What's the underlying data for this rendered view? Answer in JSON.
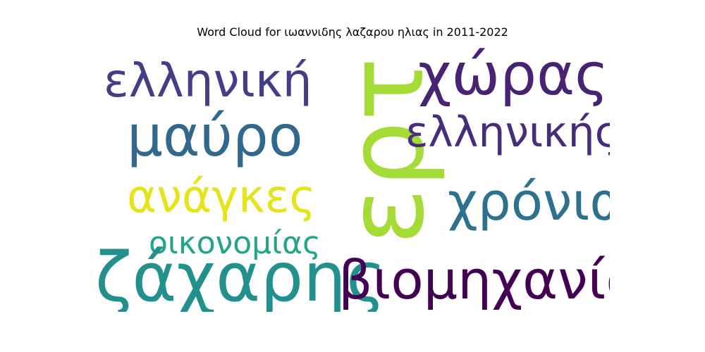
{
  "title": "Word Cloud for ιωαννιδης λαζαρου ηλιας in 2011-2022",
  "words": [
    {
      "text": "ερτ",
      "color": "#a5db36",
      "orientation": "vertical"
    },
    {
      "text": "ελληνική",
      "color": "#433e85",
      "orientation": "horizontal"
    },
    {
      "text": "χώρας",
      "color": "#482374",
      "orientation": "horizontal"
    },
    {
      "text": "μαύρο",
      "color": "#31688e",
      "orientation": "horizontal"
    },
    {
      "text": "ελληνικής",
      "color": "#472d7b",
      "orientation": "horizontal"
    },
    {
      "text": "ανάγκες",
      "color": "#e5e419",
      "orientation": "horizontal"
    },
    {
      "text": "χρόνια",
      "color": "#2c728e",
      "orientation": "horizontal"
    },
    {
      "text": "οικονομίας",
      "color": "#21a585",
      "orientation": "horizontal"
    },
    {
      "text": "ζάχαρης",
      "color": "#22908c",
      "orientation": "horizontal"
    },
    {
      "text": "βιομηχανία",
      "color": "#440154",
      "orientation": "horizontal"
    }
  ]
}
